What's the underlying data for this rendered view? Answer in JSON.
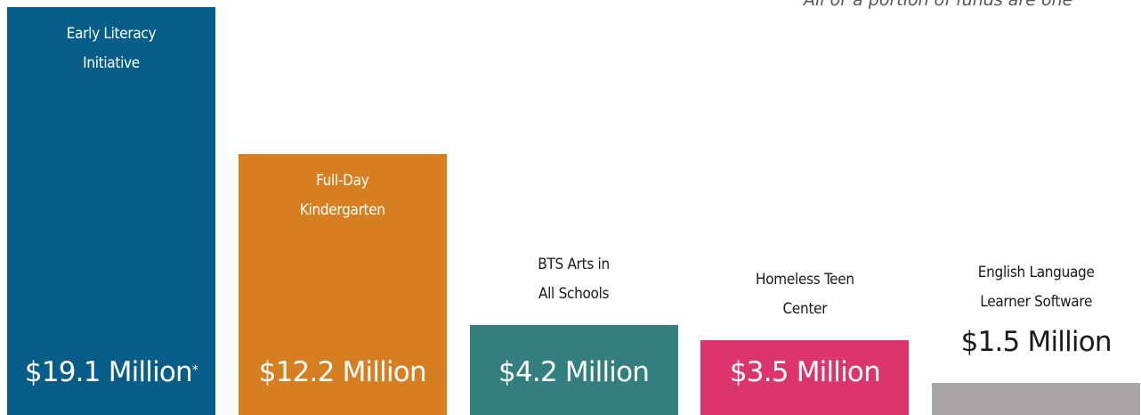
{
  "chart_data": {
    "type": "bar",
    "annotation": "All or a portion of funds are one",
    "categories": [
      "Early Literacy\nInitiative",
      "Full-Day\nKindergarten",
      "BTS Arts in\nAll Schools",
      "Homeless Teen\nCenter",
      "English Language\nLearner Software"
    ],
    "values": [
      19.1,
      12.2,
      4.2,
      3.5,
      1.5
    ],
    "value_labels": [
      "$19.1 Million",
      "$12.2 Million",
      "$4.2 Million",
      "$3.5 Million",
      "$1.5 Million"
    ],
    "value_label_notes": [
      "*",
      null,
      null,
      null,
      null
    ],
    "colors": [
      "#065d88",
      "#d67f22",
      "#337f7e",
      "#dc346c",
      "#a7a5a6"
    ]
  }
}
